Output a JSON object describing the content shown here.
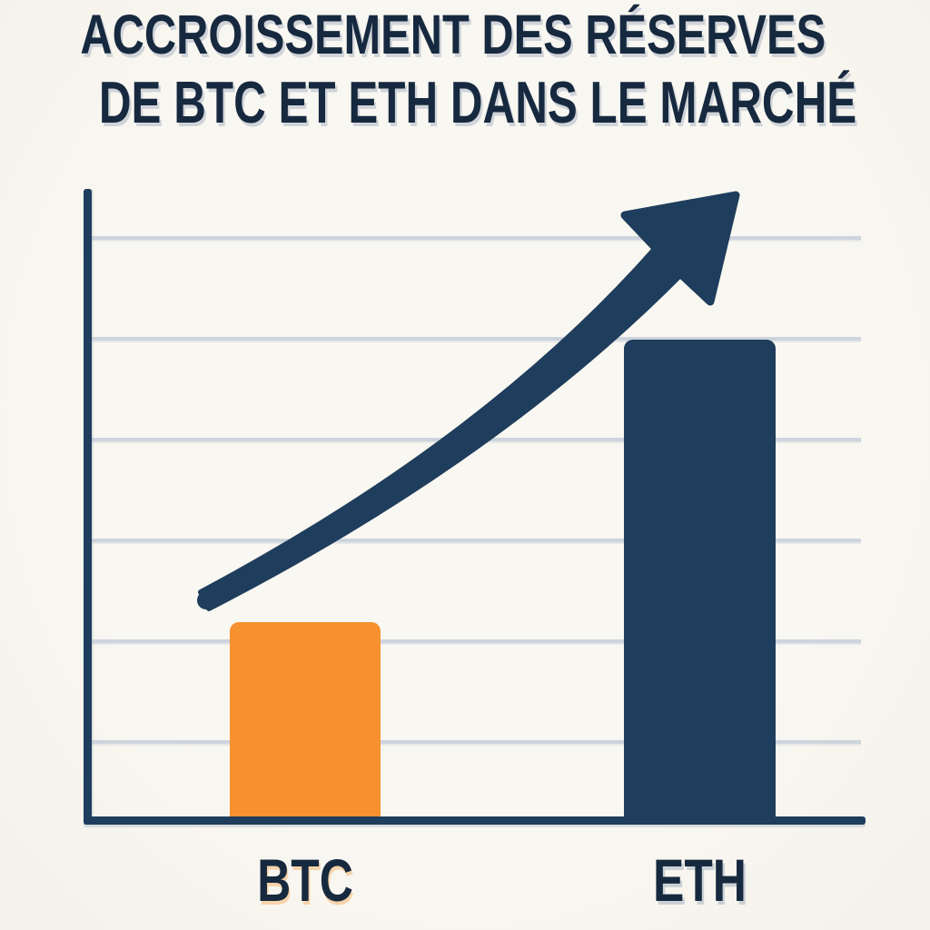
{
  "title": {
    "line1": "ACCROISSEMENT DES RÉSERVES",
    "line2": "DE BTC ET ETH DANS LE MARCHÉ"
  },
  "chart_data": {
    "type": "bar",
    "title": "Accroissement des réserves de BTC et ETH dans le marché",
    "categories": [
      "BTC",
      "ETH"
    ],
    "values": [
      31,
      76
    ],
    "value_unit": "percent of plot height (no numeric axis labels shown)",
    "xlabel": "",
    "ylabel": "",
    "ylim": [
      0,
      100
    ],
    "grid": true,
    "gridline_count": 6,
    "tick_labels_visible": false,
    "legend": "none",
    "annotations": [
      "large curved growth arrow rising from above BTC bar to upper right"
    ],
    "colors": {
      "BTC": "#f7912f",
      "ETH": "#1f3d5c"
    }
  },
  "colors": {
    "background": "#f8f6f0",
    "navy": "#1f3d5c",
    "title_text": "#16293f",
    "gridline": "#cdd4dd",
    "orange": "#f7912f"
  },
  "icons": {
    "growth_arrow": "upward curved trend arrow"
  }
}
